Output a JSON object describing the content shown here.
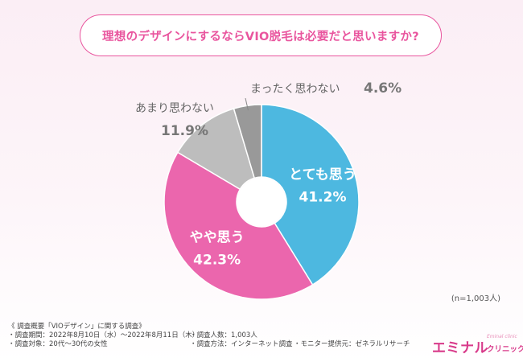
{
  "title": "理想のデザインにするならVIO脱毛は必要だと思いますか?",
  "sample_size": "(n=1,003人)",
  "notes": {
    "heading": "《 調査概要「VIOデザイン」に関する調査》",
    "period": "・調査期間：2022年8月10日（水）〜2022年8月11日（木）",
    "target": "・調査対象：20代〜30代の女性",
    "count": "・調査人数：1,003人",
    "method": "・調査方法：インターネット調査",
    "provider": "・モニター提供元：ゼネラルリサーチ"
  },
  "logo": {
    "main": "エミナル",
    "sub": "クリニック",
    "tag": "Eminal clinic"
  },
  "colors": {
    "accent": "#e9559e",
    "slice_1": "#4db8e0",
    "slice_2": "#eb66ad",
    "slice_3": "#bdbdbd",
    "slice_4": "#999999"
  },
  "chart_data": {
    "type": "pie",
    "donut": true,
    "start": "top, clockwise",
    "categories": [
      "とても思う",
      "やや思う",
      "あまり思わない",
      "まったく思わない"
    ],
    "values": [
      41.2,
      42.3,
      11.9,
      4.6
    ],
    "value_labels": [
      "41.2%",
      "42.3%",
      "11.9%",
      "4.6%"
    ],
    "label_placement": [
      "inside",
      "inside",
      "outside",
      "outside"
    ]
  }
}
